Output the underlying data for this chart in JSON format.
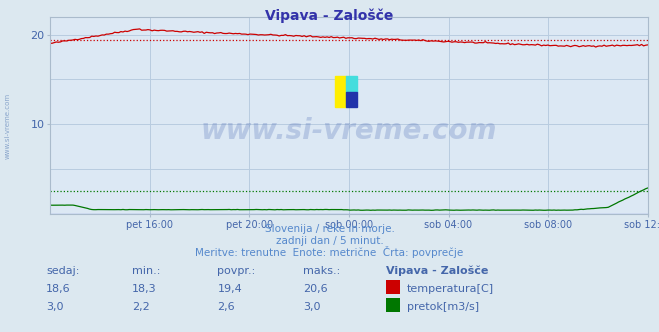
{
  "title": "Vipava - Zalošče",
  "bg_color": "#dce8f0",
  "plot_bg_color": "#dce8f4",
  "grid_color": "#b8cce0",
  "x_labels": [
    "pet 16:00",
    "pet 20:00",
    "sob 00:00",
    "sob 04:00",
    "sob 08:00",
    "sob 12:00"
  ],
  "ylim": [
    0,
    22
  ],
  "yticks": [
    10,
    20
  ],
  "temp_avg": 19.4,
  "flow_avg": 2.6,
  "temp_color": "#cc0000",
  "flow_color": "#007700",
  "height_color": "#0000bb",
  "subtitle1": "Slovenija / reke in morje.",
  "subtitle2": "zadnji dan / 5 minut.",
  "subtitle3": "Meritve: trenutne  Enote: metrične  Črta: povprečje",
  "subtitle_color": "#5588cc",
  "table_header": [
    "sedaj:",
    "min.:",
    "povpr.:",
    "maks.:",
    "Vipava - Zalošče"
  ],
  "table_color": "#4466aa",
  "row1": [
    "18,6",
    "18,3",
    "19,4",
    "20,6"
  ],
  "row2": [
    "3,0",
    "2,2",
    "2,6",
    "3,0"
  ],
  "legend1": "temperatura[C]",
  "legend2": "pretok[m3/s]",
  "watermark_text": "www.si-vreme.com",
  "watermark_color": "#3355aa",
  "left_watermark_color": "#6688bb",
  "title_color": "#3333aa"
}
